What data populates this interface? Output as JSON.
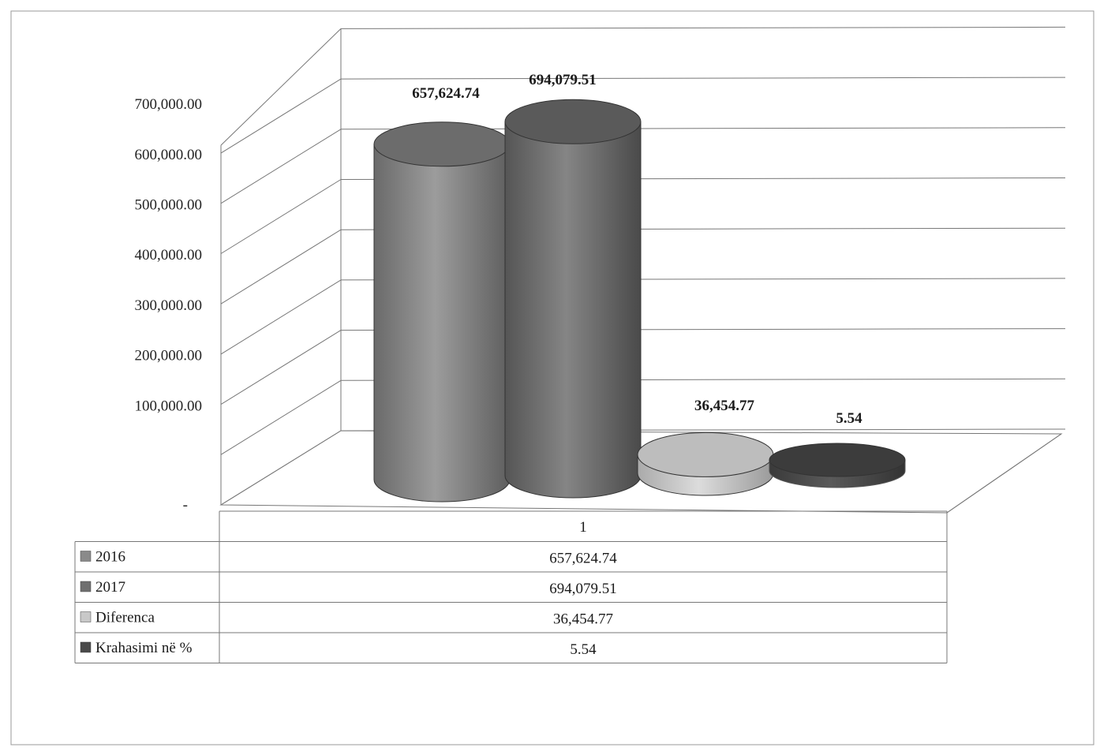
{
  "chart_data": {
    "type": "bar",
    "title": "",
    "xlabel": "",
    "ylabel": "",
    "categories": [
      "1"
    ],
    "ylim": [
      0,
      700000
    ],
    "y_ticks": [
      "-",
      "100,000.00",
      "200,000.00",
      "300,000.00",
      "400,000.00",
      "500,000.00",
      "600,000.00",
      "700,000.00"
    ],
    "grid": true,
    "legend": "data-table-below",
    "series": [
      {
        "name": "2016",
        "values": [
          657624.74
        ],
        "label": "657,624.74",
        "color": "#8a8a8a"
      },
      {
        "name": "2017",
        "values": [
          694079.51
        ],
        "label": "694,079.51",
        "color": "#6f6f6f"
      },
      {
        "name": "Diferenca",
        "values": [
          36454.77
        ],
        "label": "36,454.77",
        "color": "#c8c8c8"
      },
      {
        "name": "Krahasimi në %",
        "values": [
          5.54
        ],
        "label": "5.54",
        "color": "#4a4a4a"
      }
    ]
  }
}
